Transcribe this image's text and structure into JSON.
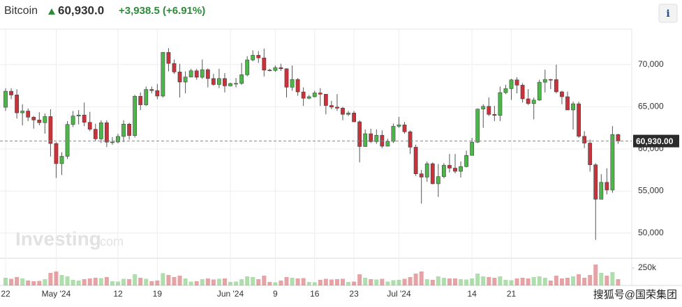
{
  "chart_data": {
    "type": "candlestick",
    "title": "Bitcoin",
    "price": "60,930.0",
    "change": "+3,938.5 (+6.91%)",
    "info": "i",
    "watermark": "Investing",
    "watermark_suffix": ".com",
    "source": "搜狐号@国荣集团",
    "up_color": "#4cb648",
    "down_color": "#c8323a",
    "categories": [
      "22",
      null,
      null,
      null,
      null,
      null,
      null,
      null,
      null,
      "May '24",
      null,
      null,
      null,
      null,
      null,
      null,
      null,
      null,
      null,
      null,
      "12",
      null,
      null,
      null,
      null,
      null,
      null,
      "19",
      null,
      null,
      null,
      null,
      null,
      null,
      null,
      null,
      null,
      null,
      null,
      null,
      "Jun '24",
      null,
      null,
      null,
      null,
      null,
      null,
      null,
      "9",
      null,
      null,
      null,
      null,
      null,
      null,
      "16",
      null,
      null,
      null,
      null,
      null,
      null,
      "23",
      null,
      null,
      null,
      null,
      null,
      null,
      null,
      "Jul '24",
      null,
      null,
      null,
      null,
      null,
      null,
      null,
      null,
      null,
      null,
      null,
      null,
      "14",
      null,
      null,
      null,
      null,
      null,
      null,
      "21",
      null,
      null,
      null,
      null,
      null,
      null,
      null,
      null,
      null,
      null,
      null,
      null,
      null,
      null,
      null,
      null,
      null,
      null,
      null
    ],
    "open": [
      64940,
      66840,
      66400,
      64280,
      64490,
      63760,
      63430,
      63110,
      63840,
      60640,
      58250,
      59120,
      62900,
      63900,
      64020,
      63150,
      62330,
      61190,
      63100,
      60800,
      60820,
      61480,
      62940,
      61580,
      66250,
      65230,
      67050,
      66920,
      66270,
      71450,
      70140,
      69130,
      67930,
      68530,
      69270,
      68500,
      69400,
      68350,
      67640,
      68350,
      67480,
      67760,
      67770,
      68800,
      70560,
      71110,
      70800,
      69350,
      69310,
      69650,
      69510,
      67320,
      68240,
      66760,
      66010,
      66190,
      66640,
      66490,
      65150,
      64960,
      64830,
      64100,
      64260,
      63210,
      60280,
      61800,
      60860,
      61610,
      60320,
      60890,
      62680,
      62850,
      62030,
      60200,
      57040,
      56650,
      58240,
      55860,
      56710,
      58050,
      57720,
      57340,
      57900,
      59230,
      60800,
      64720,
      65050,
      64090,
      63970,
      66680,
      67150,
      68190,
      67560,
      65940,
      65380,
      65790,
      67910,
      68240,
      68220,
      66770,
      66190,
      64620,
      65350,
      61490,
      60690,
      58110,
      54020,
      56030,
      55120,
      61700
    ],
    "high": [
      67200,
      67200,
      67070,
      65300,
      64800,
      63900,
      64350,
      64200,
      64700,
      60800,
      59600,
      63300,
      64500,
      64600,
      65500,
      64400,
      62990,
      63400,
      63400,
      61400,
      61800,
      63400,
      63100,
      66400,
      66700,
      67400,
      67400,
      67700,
      71500,
      71950,
      70600,
      70100,
      69200,
      69500,
      69500,
      70600,
      69550,
      68900,
      69500,
      69000,
      67850,
      68400,
      70200,
      71000,
      71700,
      71600,
      71900,
      69500,
      69900,
      70100,
      69560,
      69900,
      68400,
      67300,
      66400,
      66900,
      67200,
      66500,
      65700,
      66500,
      65000,
      64500,
      64500,
      63400,
      62300,
      62400,
      62300,
      62200,
      61200,
      63000,
      63800,
      63200,
      62200,
      60500,
      57500,
      58500,
      58400,
      58200,
      58300,
      59400,
      59400,
      58500,
      59800,
      61300,
      64800,
      65300,
      66100,
      65100,
      67400,
      67600,
      68300,
      68500,
      67800,
      67100,
      66100,
      68200,
      69400,
      68300,
      70000,
      66900,
      66800,
      65600,
      65600,
      62100,
      61100,
      58300,
      57000,
      57700,
      62700,
      61800
    ],
    "low": [
      64500,
      65900,
      63600,
      62800,
      63300,
      62400,
      62800,
      61800,
      59100,
      56550,
      56900,
      58800,
      62600,
      62900,
      62700,
      62100,
      60900,
      60700,
      60200,
      60500,
      60650,
      60800,
      61100,
      61350,
      64600,
      65100,
      66600,
      65900,
      66100,
      69200,
      68900,
      66100,
      66600,
      68500,
      68200,
      68300,
      67300,
      67500,
      67200,
      66700,
      67400,
      67300,
      67600,
      68600,
      70400,
      70200,
      68600,
      69200,
      69150,
      69250,
      66100,
      66900,
      66300,
      65100,
      65900,
      66100,
      65100,
      64100,
      64700,
      64500,
      63400,
      63900,
      63200,
      58400,
      60250,
      60700,
      60600,
      60100,
      60300,
      60700,
      62500,
      61800,
      59400,
      56800,
      53500,
      56100,
      55800,
      54300,
      56500,
      57200,
      57100,
      56600,
      57800,
      59200,
      60700,
      62500,
      63900,
      63300,
      63300,
      66500,
      65800,
      66600,
      65500,
      65200,
      63500,
      65700,
      66700,
      67100,
      66600,
      65300,
      64600,
      62300,
      61300,
      60100,
      57300,
      49200,
      54000,
      54600,
      54800,
      60600
    ],
    "close": [
      66840,
      66400,
      64280,
      64490,
      63760,
      63430,
      63110,
      63840,
      60640,
      58250,
      59120,
      62900,
      63900,
      64020,
      63150,
      62330,
      61190,
      63100,
      60800,
      60820,
      61480,
      62940,
      61580,
      66250,
      65230,
      67050,
      66920,
      66270,
      71450,
      70140,
      69130,
      67930,
      68530,
      69270,
      68500,
      69400,
      68350,
      67640,
      68350,
      67480,
      67760,
      67770,
      68800,
      70560,
      71110,
      70800,
      69350,
      69310,
      69650,
      69510,
      67320,
      68240,
      66760,
      66010,
      66190,
      66640,
      66490,
      65150,
      64960,
      64830,
      64100,
      64260,
      63210,
      60280,
      61800,
      60860,
      61610,
      60320,
      60890,
      62680,
      62850,
      62030,
      60200,
      57040,
      56650,
      58240,
      55860,
      56710,
      58050,
      57720,
      57340,
      57900,
      59230,
      60800,
      64720,
      65050,
      64090,
      63970,
      66680,
      67150,
      68190,
      67560,
      65940,
      65380,
      65790,
      67910,
      68240,
      68220,
      66770,
      66190,
      64620,
      65350,
      61490,
      60690,
      58110,
      54020,
      56030,
      55120,
      61700,
      60930
    ],
    "volume": [
      110000,
      95000,
      120000,
      100000,
      70000,
      60000,
      65000,
      90000,
      180000,
      200000,
      150000,
      130000,
      80000,
      70000,
      90000,
      100000,
      110000,
      105000,
      120000,
      60000,
      55000,
      95000,
      90000,
      160000,
      110000,
      95000,
      60000,
      70000,
      175000,
      150000,
      120000,
      140000,
      100000,
      55000,
      60000,
      90000,
      100000,
      85000,
      95000,
      100000,
      50000,
      55000,
      90000,
      130000,
      120000,
      90000,
      140000,
      50000,
      45000,
      70000,
      120000,
      110000,
      100000,
      105000,
      50000,
      45000,
      80000,
      95000,
      85000,
      90000,
      95000,
      50000,
      55000,
      160000,
      110000,
      90000,
      85000,
      95000,
      55000,
      75000,
      80000,
      95000,
      120000,
      170000,
      200000,
      90000,
      80000,
      130000,
      110000,
      100000,
      100000,
      90000,
      85000,
      100000,
      170000,
      130000,
      120000,
      110000,
      130000,
      80000,
      75000,
      100000,
      110000,
      100000,
      120000,
      130000,
      110000,
      70000,
      140000,
      100000,
      110000,
      130000,
      160000,
      110000,
      150000,
      300000,
      180000,
      140000,
      190000,
      90000
    ],
    "ylim": [
      47100,
      74200
    ],
    "yticks": [
      {
        "value": 50000,
        "label": "50,000"
      },
      {
        "value": 55000,
        "label": "55,000"
      },
      {
        "value": 60000,
        "label": "60,000"
      },
      {
        "value": 65000,
        "label": "65,000"
      },
      {
        "value": 70000,
        "label": "70,000"
      }
    ],
    "volume_ylim": [
      0,
      380000
    ],
    "volume_yticks": [
      {
        "value": 250000,
        "label": "250k"
      }
    ],
    "current_price": {
      "value": 60930,
      "label": "60,930.00"
    },
    "grid": true
  }
}
